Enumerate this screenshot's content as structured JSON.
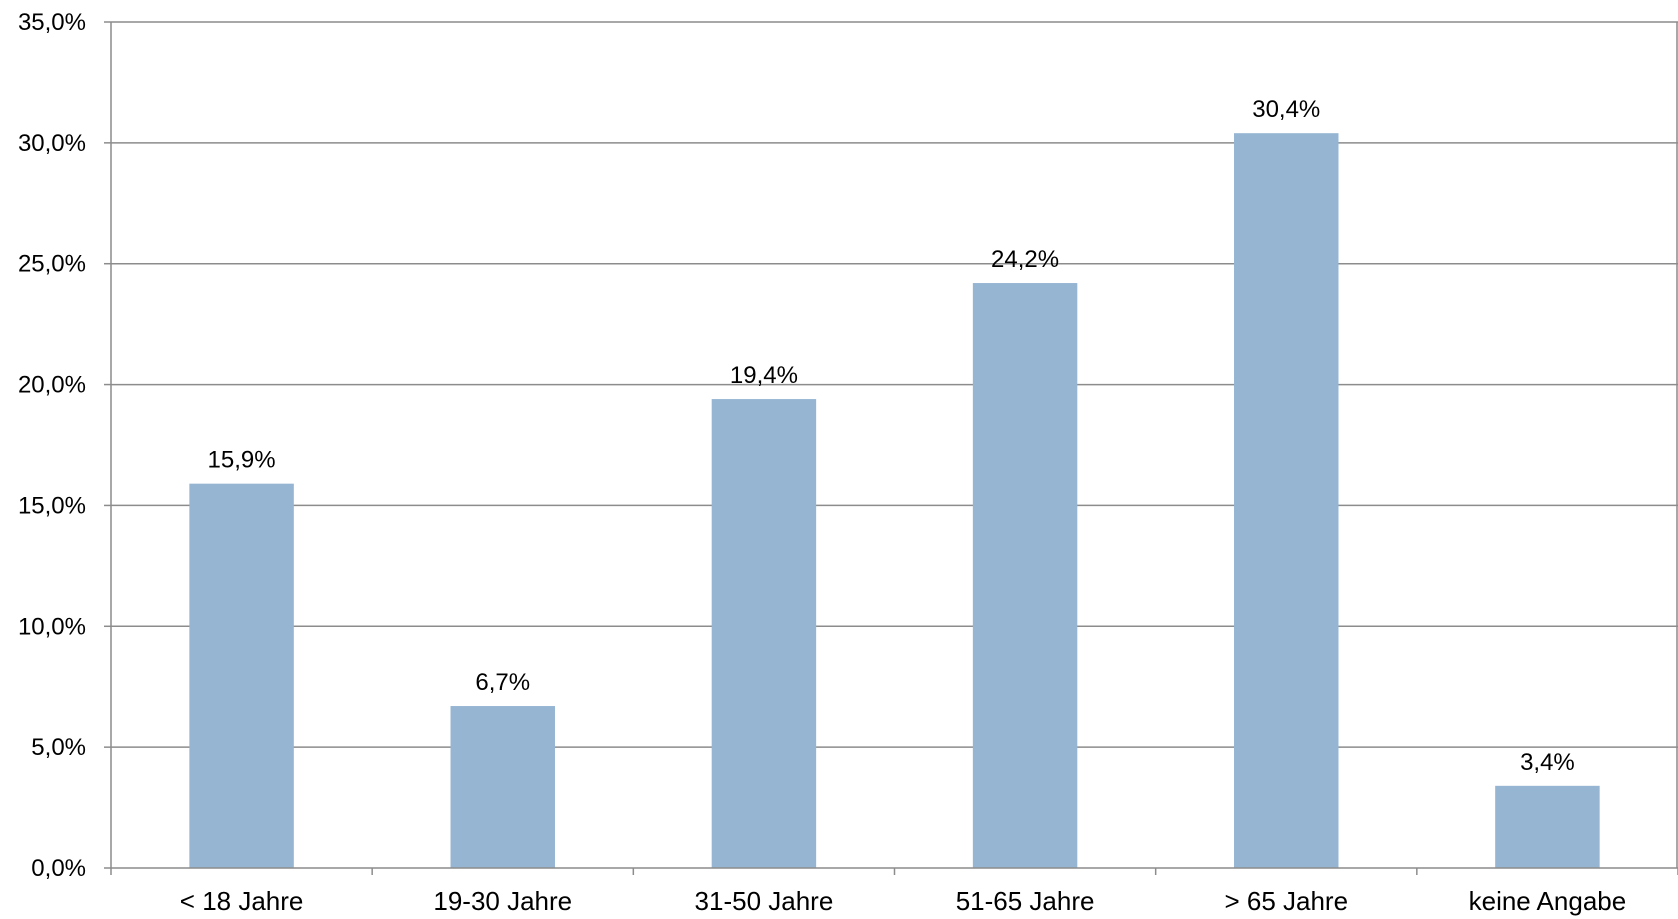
{
  "chart_data": {
    "type": "bar",
    "categories": [
      "< 18 Jahre",
      "19-30 Jahre",
      "31-50 Jahre",
      "51-65 Jahre",
      "> 65 Jahre",
      "keine Angabe"
    ],
    "values": [
      15.9,
      6.7,
      19.4,
      24.2,
      30.4,
      3.4
    ],
    "value_labels": [
      "15,9%",
      "6,7%",
      "19,4%",
      "24,2%",
      "30,4%",
      "3,4%"
    ],
    "y_ticks": [
      0,
      5,
      10,
      15,
      20,
      25,
      30,
      35
    ],
    "y_tick_labels": [
      "0,0%",
      "5,0%",
      "10,0%",
      "15,0%",
      "20,0%",
      "25,0%",
      "30,0%",
      "35,0%"
    ],
    "ylim": [
      0,
      35
    ],
    "title": "",
    "xlabel": "",
    "ylabel": "",
    "grid": true,
    "legend": "none",
    "colors": {
      "bar": "#95b5d3",
      "grid": "#8c8c8c",
      "axis": "#8c8c8c"
    }
  }
}
